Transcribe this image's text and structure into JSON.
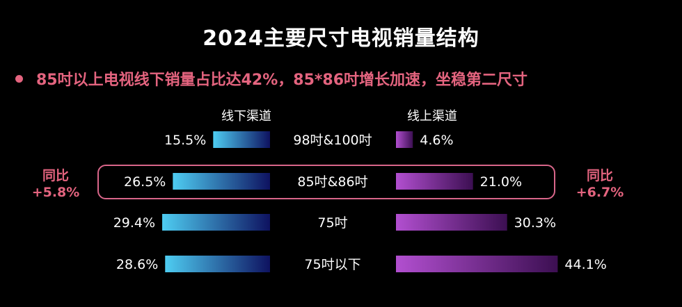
{
  "header": {
    "title": "2024主要尺寸电视销量结构",
    "subtitle": "85吋以上电视线下销量占比达42%，85*86吋增长加速，坐稳第二尺寸"
  },
  "colors": {
    "offline_gradient": [
      "#4ecdf2",
      "#0e1260"
    ],
    "online_gradient": [
      "#b24fd0",
      "#3c0f52"
    ],
    "accent": "#e4647f",
    "highlight_border": "#d9668a"
  },
  "chart_data": {
    "type": "bar",
    "orientation": "horizontal-butterfly",
    "categories": [
      "98吋&100吋",
      "85吋&86吋",
      "75吋",
      "75吋以下"
    ],
    "series": [
      {
        "name": "线下渠道",
        "values": [
          15.5,
          26.5,
          29.4,
          28.6
        ],
        "labels": [
          "15.5%",
          "26.5%",
          "29.4%",
          "28.6%"
        ]
      },
      {
        "name": "线上渠道",
        "values": [
          4.6,
          21.0,
          30.3,
          44.1
        ],
        "labels": [
          "4.6%",
          "21.0%",
          "30.3%",
          "44.1%"
        ]
      }
    ],
    "annotations": {
      "highlight_category": "85吋&86吋",
      "left": {
        "label": "同比",
        "value": "+5.8%"
      },
      "right": {
        "label": "同比",
        "value": "+6.7%"
      }
    }
  }
}
